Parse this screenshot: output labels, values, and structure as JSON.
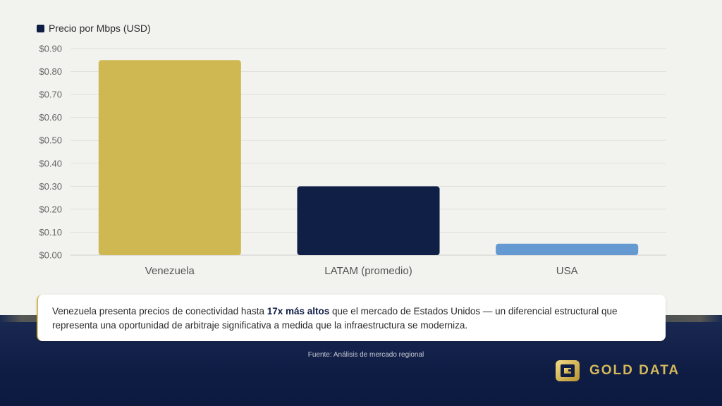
{
  "legend": {
    "label": "Precio por Mbps (USD)",
    "color": "#0f1d45"
  },
  "chart_data": {
    "type": "bar",
    "categories": [
      "Venezuela",
      "LATAM (promedio)",
      "USA"
    ],
    "series": [
      {
        "name": "Precio por Mbps (USD)",
        "values": [
          0.85,
          0.3,
          0.05
        ]
      }
    ],
    "bar_colors": [
      "#cfb852",
      "#0f1f45",
      "#6499d2"
    ],
    "y_ticks": [
      "$0.00",
      "$0.10",
      "$0.20",
      "$0.30",
      "$0.40",
      "$0.50",
      "$0.60",
      "$0.70",
      "$0.80",
      "$0.90"
    ],
    "ylim": [
      0,
      0.9
    ],
    "grid": true,
    "legend_position": "top-left"
  },
  "callout": {
    "text_before": "Venezuela presenta precios de conectividad hasta ",
    "highlight": "17x más altos",
    "text_after": " que el mercado de Estados Unidos — un diferencial estructural que representa una oportunidad de arbitraje significativa a medida que la infraestructura se moderniza."
  },
  "source": "Fuente: Análisis de mercado regional",
  "brand": {
    "name": "GOLD DATA",
    "icon": "gold-data-logo-icon",
    "color": "#d4b85a"
  },
  "theme": {
    "background": "#f2f2ee",
    "footer": "#0f1d45",
    "accent": "#d4b85a"
  }
}
